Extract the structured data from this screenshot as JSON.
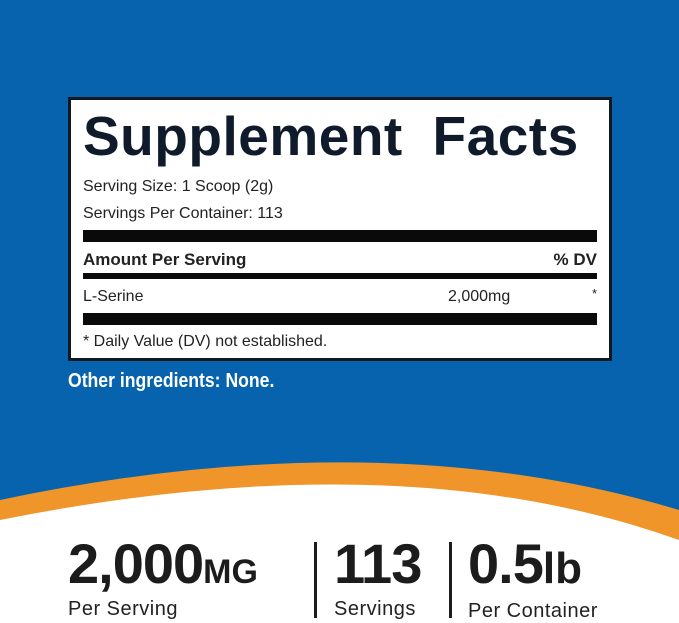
{
  "colors": {
    "background_blue": "#0863ae",
    "accent_orange": "#f0952a",
    "text_dark": "#1c1c1c"
  },
  "facts": {
    "title": "Supplement Facts",
    "serving_size": "Serving Size: 1 Scoop (2g)",
    "servings_per_container": "Servings Per Container: 113",
    "amount_header": "Amount Per Serving",
    "dv_header": "% DV",
    "ingredients": [
      {
        "name": "L-Serine",
        "amount": "2,000mg",
        "dv": "*"
      }
    ],
    "footnote": "* Daily Value (DV) not established."
  },
  "other_ingredients": "Other ingredients: None.",
  "stats": [
    {
      "value": "2,000",
      "unit": "MG",
      "label": "Per Serving"
    },
    {
      "value": "113",
      "unit": "",
      "label": "Servings"
    },
    {
      "value": "0.5",
      "unit": "lb",
      "label": "Per Container"
    }
  ]
}
